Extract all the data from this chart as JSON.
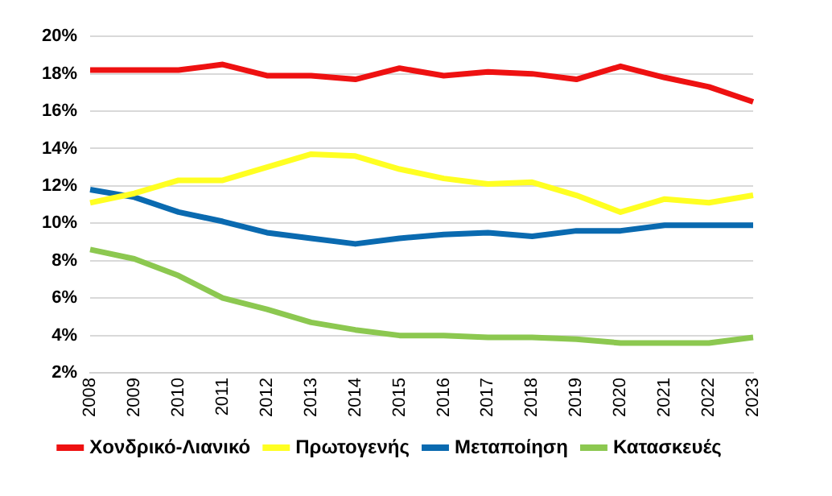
{
  "chart_data": {
    "type": "line",
    "categories": [
      "2008",
      "2009",
      "2010",
      "2011",
      "2012",
      "2013",
      "2014",
      "2015",
      "2016",
      "2017",
      "2018",
      "2019",
      "2020",
      "2021",
      "2022",
      "2023"
    ],
    "series": [
      {
        "name": "Χονδρικό-Λιανικό",
        "color": "#ee1111",
        "values": [
          18.2,
          18.2,
          18.2,
          18.5,
          17.9,
          17.9,
          17.7,
          18.3,
          17.9,
          18.1,
          18.0,
          17.7,
          18.4,
          17.8,
          17.3,
          16.5
        ]
      },
      {
        "name": "Πρωτογενής",
        "color": "#ffff22",
        "values": [
          11.1,
          11.6,
          12.3,
          12.3,
          13.0,
          13.7,
          13.6,
          12.9,
          12.4,
          12.1,
          12.2,
          11.5,
          10.6,
          11.3,
          11.1,
          11.5
        ]
      },
      {
        "name": "Μεταποίηση",
        "color": "#0a6ab0",
        "values": [
          11.8,
          11.4,
          10.6,
          10.1,
          9.5,
          9.2,
          8.9,
          9.2,
          9.4,
          9.5,
          9.3,
          9.6,
          9.6,
          9.9,
          9.9,
          9.9
        ]
      },
      {
        "name": "Κατασκευές",
        "color": "#8cc850",
        "values": [
          8.6,
          8.1,
          7.2,
          6.0,
          5.4,
          4.7,
          4.3,
          4.0,
          4.0,
          3.9,
          3.9,
          3.8,
          3.6,
          3.6,
          3.6,
          3.9
        ]
      }
    ],
    "ylim": [
      2,
      20
    ],
    "yticks": [
      {
        "value": 2,
        "label": "2%"
      },
      {
        "value": 4,
        "label": "4%"
      },
      {
        "value": 6,
        "label": "6%"
      },
      {
        "value": 8,
        "label": "8%"
      },
      {
        "value": 10,
        "label": "10%"
      },
      {
        "value": 12,
        "label": "12%"
      },
      {
        "value": 14,
        "label": "14%"
      },
      {
        "value": 16,
        "label": "16%"
      },
      {
        "value": 18,
        "label": "18%"
      },
      {
        "value": 20,
        "label": "20%"
      }
    ],
    "grid": "y",
    "legend": "bottom",
    "marker": "none",
    "line_style": "solid"
  }
}
